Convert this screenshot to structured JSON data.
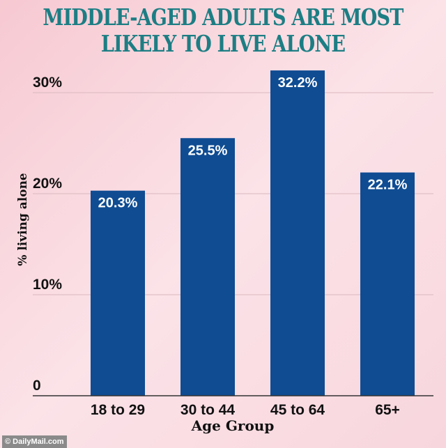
{
  "chart_data": {
    "type": "bar",
    "title": "MIDDLE-AGED ADULTS ARE MOST LIKELY TO LIVE ALONE",
    "xlabel": "Age Group",
    "ylabel": "% living alone",
    "categories": [
      "18 to 29",
      "30 to 44",
      "45 to 64",
      "65+"
    ],
    "values": [
      20.3,
      25.5,
      32.2,
      22.1
    ],
    "data_labels": [
      "20.3%",
      "25.5%",
      "32.2%",
      "22.1%"
    ],
    "ylim": [
      0,
      30
    ],
    "yticks": [
      0,
      10,
      20,
      30
    ],
    "ytick_labels": [
      "0",
      "10%",
      "20%",
      "30%"
    ],
    "grid": true,
    "bar_color": "#0f4c92",
    "title_color": "#1c7e84"
  },
  "watermark": "© DailyMail.com"
}
